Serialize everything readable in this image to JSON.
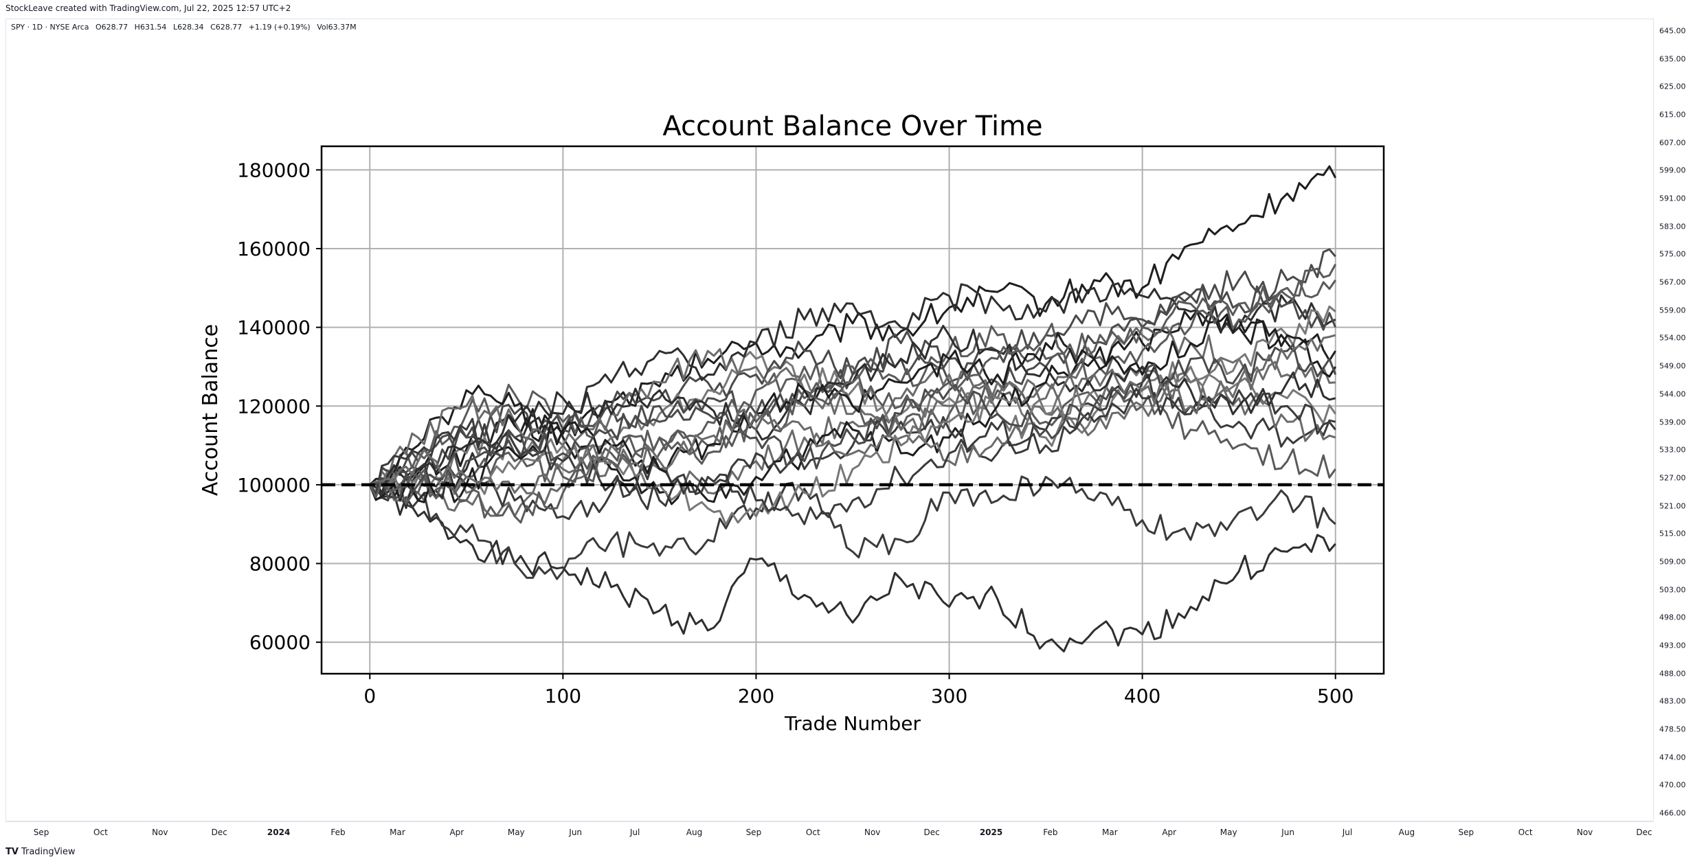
{
  "caption": "StockLeave created with TradingView.com, Jul 22, 2025 12:57 UTC+2",
  "legend": {
    "symbol": "SPY · 1D · NYSE Arca",
    "open": "O628.77",
    "high": "H631.54",
    "low": "L628.34",
    "close": "C628.77",
    "change": "+1.19 (+0.19%)",
    "volume": "Vol63.37M"
  },
  "price_axis": [
    "645.00",
    "635.00",
    "625.00",
    "615.00",
    "607.00",
    "599.00",
    "591.00",
    "583.00",
    "575.00",
    "567.00",
    "559.00",
    "554.00",
    "549.00",
    "544.00",
    "539.00",
    "533.00",
    "527.00",
    "521.00",
    "515.00",
    "509.00",
    "503.00",
    "498.00",
    "493.00",
    "488.00",
    "483.00",
    "478.50",
    "474.00",
    "470.00",
    "466.00"
  ],
  "time_axis": [
    {
      "label": "Sep",
      "year": false
    },
    {
      "label": "Oct",
      "year": false
    },
    {
      "label": "Nov",
      "year": false
    },
    {
      "label": "Dec",
      "year": false
    },
    {
      "label": "2024",
      "year": true
    },
    {
      "label": "Feb",
      "year": false
    },
    {
      "label": "Mar",
      "year": false
    },
    {
      "label": "Apr",
      "year": false
    },
    {
      "label": "May",
      "year": false
    },
    {
      "label": "Jun",
      "year": false
    },
    {
      "label": "Jul",
      "year": false
    },
    {
      "label": "Aug",
      "year": false
    },
    {
      "label": "Sep",
      "year": false
    },
    {
      "label": "Oct",
      "year": false
    },
    {
      "label": "Nov",
      "year": false
    },
    {
      "label": "Dec",
      "year": false
    },
    {
      "label": "2025",
      "year": true
    },
    {
      "label": "Feb",
      "year": false
    },
    {
      "label": "Mar",
      "year": false
    },
    {
      "label": "Apr",
      "year": false
    },
    {
      "label": "May",
      "year": false
    },
    {
      "label": "Jun",
      "year": false
    },
    {
      "label": "Jul",
      "year": false
    },
    {
      "label": "Aug",
      "year": false
    },
    {
      "label": "Sep",
      "year": false
    },
    {
      "label": "Oct",
      "year": false
    },
    {
      "label": "Nov",
      "year": false
    },
    {
      "label": "Dec",
      "year": false
    }
  ],
  "brand": {
    "logo": "TV",
    "name": "TradingView"
  },
  "chart_data": {
    "type": "line",
    "title": "Account Balance Over Time",
    "xlabel": "Trade Number",
    "ylabel": "Account Balance",
    "xlim": [
      -25,
      525
    ],
    "ylim": [
      52000,
      186000
    ],
    "xticks": [
      0,
      100,
      200,
      300,
      400,
      500
    ],
    "yticks": [
      60000,
      80000,
      100000,
      120000,
      140000,
      160000,
      180000
    ],
    "grid": true,
    "reference_line": {
      "y": 100000,
      "style": "dashed",
      "color": "#000000"
    },
    "series_colors": [
      "#1e1e1e",
      "#2e2e2e",
      "#3a3a3a",
      "#4a4a4a",
      "#5a5a5a",
      "#6a6a6a",
      "#777777"
    ],
    "series": [
      {
        "x": [
          0,
          25,
          50,
          75,
          100,
          125,
          150,
          175,
          200,
          225,
          250,
          275,
          300,
          325,
          350,
          375,
          400,
          425,
          450,
          475,
          500
        ],
        "values": [
          100000,
          103000,
          109000,
          115000,
          113000,
          121000,
          125000,
          132000,
          136000,
          134000,
          141000,
          139000,
          145000,
          149000,
          146000,
          152000,
          150000,
          161000,
          166000,
          174000,
          178000
        ]
      },
      {
        "x": [
          0,
          25,
          50,
          75,
          100,
          125,
          150,
          175,
          200,
          225,
          250,
          275,
          300,
          325,
          350,
          375,
          400,
          425,
          450,
          475,
          500
        ],
        "values": [
          100000,
          92000,
          86000,
          80000,
          79000,
          74000,
          68000,
          63000,
          81000,
          72000,
          65000,
          76000,
          69000,
          71000,
          60000,
          63000,
          62000,
          69000,
          78000,
          83000,
          85000
        ]
      },
      {
        "x": [
          0,
          25,
          50,
          75,
          100,
          125,
          150,
          175,
          200,
          225,
          250,
          275,
          300,
          325,
          350,
          375,
          400,
          425,
          450,
          475,
          500
        ],
        "values": [
          100000,
          96000,
          88000,
          80000,
          78000,
          86000,
          82000,
          86000,
          94000,
          99000,
          83000,
          86000,
          98000,
          96000,
          102000,
          96000,
          91000,
          86000,
          93000,
          97000,
          90000
        ]
      },
      {
        "x": [
          0,
          25,
          50,
          75,
          100,
          125,
          150,
          175,
          200,
          225,
          250,
          275,
          300,
          325,
          350,
          375,
          400,
          425,
          450,
          475,
          500
        ],
        "values": [
          100000,
          104000,
          112000,
          118000,
          114000,
          120000,
          122000,
          126000,
          118000,
          124000,
          128000,
          132000,
          126000,
          134000,
          138000,
          144000,
          140000,
          148000,
          146000,
          152000,
          158000
        ]
      },
      {
        "x": [
          0,
          25,
          50,
          75,
          100,
          125,
          150,
          175,
          200,
          225,
          250,
          275,
          300,
          325,
          350,
          375,
          400,
          425,
          450,
          475,
          500
        ],
        "values": [
          100000,
          108000,
          118000,
          123000,
          116000,
          112000,
          108000,
          116000,
          124000,
          130000,
          120000,
          114000,
          118000,
          124000,
          116000,
          122000,
          120000,
          114000,
          110000,
          106000,
          104000
        ]
      },
      {
        "x": [
          0,
          25,
          50,
          75,
          100,
          125,
          150,
          175,
          200,
          225,
          250,
          275,
          300,
          325,
          350,
          375,
          400,
          425,
          450,
          475,
          500
        ],
        "values": [
          100000,
          98000,
          96000,
          92000,
          100000,
          106000,
          104000,
          98000,
          106000,
          112000,
          116000,
          122000,
          128000,
          122000,
          126000,
          132000,
          138000,
          136000,
          132000,
          128000,
          126000
        ]
      },
      {
        "x": [
          0,
          25,
          50,
          75,
          100,
          125,
          150,
          175,
          200,
          225,
          250,
          275,
          300,
          325,
          350,
          375,
          400,
          425,
          450,
          475,
          500
        ],
        "values": [
          100000,
          102000,
          108000,
          110000,
          106000,
          112000,
          118000,
          124000,
          132000,
          128000,
          124000,
          118000,
          122000,
          118000,
          112000,
          118000,
          124000,
          130000,
          126000,
          122000,
          118000
        ]
      },
      {
        "x": [
          0,
          25,
          50,
          75,
          100,
          125,
          150,
          175,
          200,
          225,
          250,
          275,
          300,
          325,
          350,
          375,
          400,
          425,
          450,
          475,
          500
        ],
        "values": [
          100000,
          110000,
          124000,
          120000,
          112000,
          104000,
          98000,
          96000,
          102000,
          108000,
          114000,
          108000,
          112000,
          120000,
          126000,
          132000,
          136000,
          142000,
          140000,
          136000,
          130000
        ]
      },
      {
        "x": [
          0,
          25,
          50,
          75,
          100,
          125,
          150,
          175,
          200,
          225,
          250,
          275,
          300,
          325,
          350,
          375,
          400,
          425,
          450,
          475,
          500
        ],
        "values": [
          100000,
          96000,
          104000,
          112000,
          118000,
          126000,
          134000,
          128000,
          136000,
          142000,
          146000,
          140000,
          148000,
          146000,
          144000,
          150000,
          148000,
          144000,
          140000,
          146000,
          142000
        ]
      },
      {
        "x": [
          0,
          25,
          50,
          75,
          100,
          125,
          150,
          175,
          200,
          225,
          250,
          275,
          300,
          325,
          350,
          375,
          400,
          425,
          450,
          475,
          500
        ],
        "values": [
          100000,
          104000,
          100000,
          96000,
          92000,
          98000,
          104000,
          100000,
          108000,
          104000,
          110000,
          116000,
          114000,
          108000,
          114000,
          120000,
          126000,
          120000,
          116000,
          112000,
          116000
        ]
      },
      {
        "x": [
          0,
          25,
          50,
          75,
          100,
          125,
          150,
          175,
          200,
          225,
          250,
          275,
          300,
          325,
          350,
          375,
          400,
          425,
          450,
          475,
          500
        ],
        "values": [
          100000,
          106000,
          112000,
          108000,
          114000,
          120000,
          116000,
          122000,
          128000,
          134000,
          128000,
          136000,
          132000,
          126000,
          130000,
          136000,
          142000,
          148000,
          152000,
          146000,
          140000
        ]
      },
      {
        "x": [
          0,
          25,
          50,
          75,
          100,
          125,
          150,
          175,
          200,
          225,
          250,
          275,
          300,
          325,
          350,
          375,
          400,
          425,
          450,
          475,
          500
        ],
        "values": [
          100000,
          98000,
          102000,
          106000,
          102000,
          108000,
          112000,
          110000,
          116000,
          122000,
          130000,
          126000,
          134000,
          138000,
          132000,
          128000,
          134000,
          140000,
          146000,
          150000,
          156000
        ]
      },
      {
        "x": [
          0,
          25,
          50,
          75,
          100,
          125,
          150,
          175,
          200,
          225,
          250,
          275,
          300,
          325,
          350,
          375,
          400,
          425,
          450,
          475,
          500
        ],
        "values": [
          100000,
          112000,
          120000,
          116000,
          110000,
          118000,
          126000,
          134000,
          130000,
          124000,
          118000,
          112000,
          106000,
          112000,
          118000,
          114000,
          120000,
          126000,
          122000,
          116000,
          112000
        ]
      },
      {
        "x": [
          0,
          25,
          50,
          75,
          100,
          125,
          150,
          175,
          200,
          225,
          250,
          275,
          300,
          325,
          350,
          375,
          400,
          425,
          450,
          475,
          500
        ],
        "values": [
          100000,
          102000,
          98000,
          104000,
          110000,
          106000,
          100000,
          94000,
          92000,
          98000,
          104000,
          110000,
          116000,
          122000,
          118000,
          124000,
          130000,
          126000,
          132000,
          138000,
          144000
        ]
      },
      {
        "x": [
          0,
          25,
          50,
          75,
          100,
          125,
          150,
          175,
          200,
          225,
          250,
          275,
          300,
          325,
          350,
          375,
          400,
          425,
          450,
          475,
          500
        ],
        "values": [
          100000,
          96000,
          100000,
          108000,
          114000,
          110000,
          104000,
          110000,
          118000,
          124000,
          120000,
          126000,
          132000,
          128000,
          136000,
          132000,
          128000,
          136000,
          142000,
          138000,
          134000
        ]
      },
      {
        "x": [
          0,
          25,
          50,
          75,
          100,
          125,
          150,
          175,
          200,
          225,
          250,
          275,
          300,
          325,
          350,
          375,
          400,
          425,
          450,
          475,
          500
        ],
        "values": [
          100000,
          104000,
          110000,
          116000,
          122000,
          118000,
          124000,
          120000,
          114000,
          120000,
          126000,
          132000,
          138000,
          134000,
          130000,
          124000,
          130000,
          124000,
          120000,
          126000,
          122000
        ]
      },
      {
        "x": [
          0,
          25,
          50,
          75,
          100,
          125,
          150,
          175,
          200,
          225,
          250,
          275,
          300,
          325,
          350,
          375,
          400,
          425,
          450,
          475,
          500
        ],
        "values": [
          100000,
          108000,
          114000,
          110000,
          106000,
          100000,
          96000,
          102000,
          96000,
          90000,
          96000,
          102000,
          108000,
          114000,
          110000,
          116000,
          122000,
          118000,
          124000,
          120000,
          114000
        ]
      },
      {
        "x": [
          0,
          25,
          50,
          75,
          100,
          125,
          150,
          175,
          200,
          225,
          250,
          275,
          300,
          325,
          350,
          375,
          400,
          425,
          450,
          475,
          500
        ],
        "values": [
          100000,
          100000,
          106000,
          112000,
          108000,
          114000,
          120000,
          118000,
          112000,
          106000,
          112000,
          118000,
          124000,
          118000,
          114000,
          120000,
          126000,
          132000,
          128000,
          134000,
          128000
        ]
      },
      {
        "x": [
          0,
          25,
          50,
          75,
          100,
          125,
          150,
          175,
          200,
          225,
          250,
          275,
          300,
          325,
          350,
          375,
          400,
          425,
          450,
          475,
          500
        ],
        "values": [
          100000,
          102000,
          96000,
          92000,
          98000,
          106000,
          112000,
          108000,
          114000,
          120000,
          126000,
          120000,
          126000,
          132000,
          138000,
          134000,
          140000,
          146000,
          142000,
          148000,
          152000
        ]
      },
      {
        "x": [
          0,
          25,
          50,
          75,
          100,
          125,
          150,
          175,
          200,
          225,
          250,
          275,
          300,
          325,
          350,
          375,
          400,
          425,
          450,
          475,
          500
        ],
        "values": [
          100000,
          106000,
          102000,
          98000,
          104000,
          110000,
          106000,
          112000,
          118000,
          114000,
          108000,
          114000,
          120000,
          126000,
          122000,
          128000,
          124000,
          120000,
          126000,
          132000,
          138000
        ]
      }
    ]
  }
}
